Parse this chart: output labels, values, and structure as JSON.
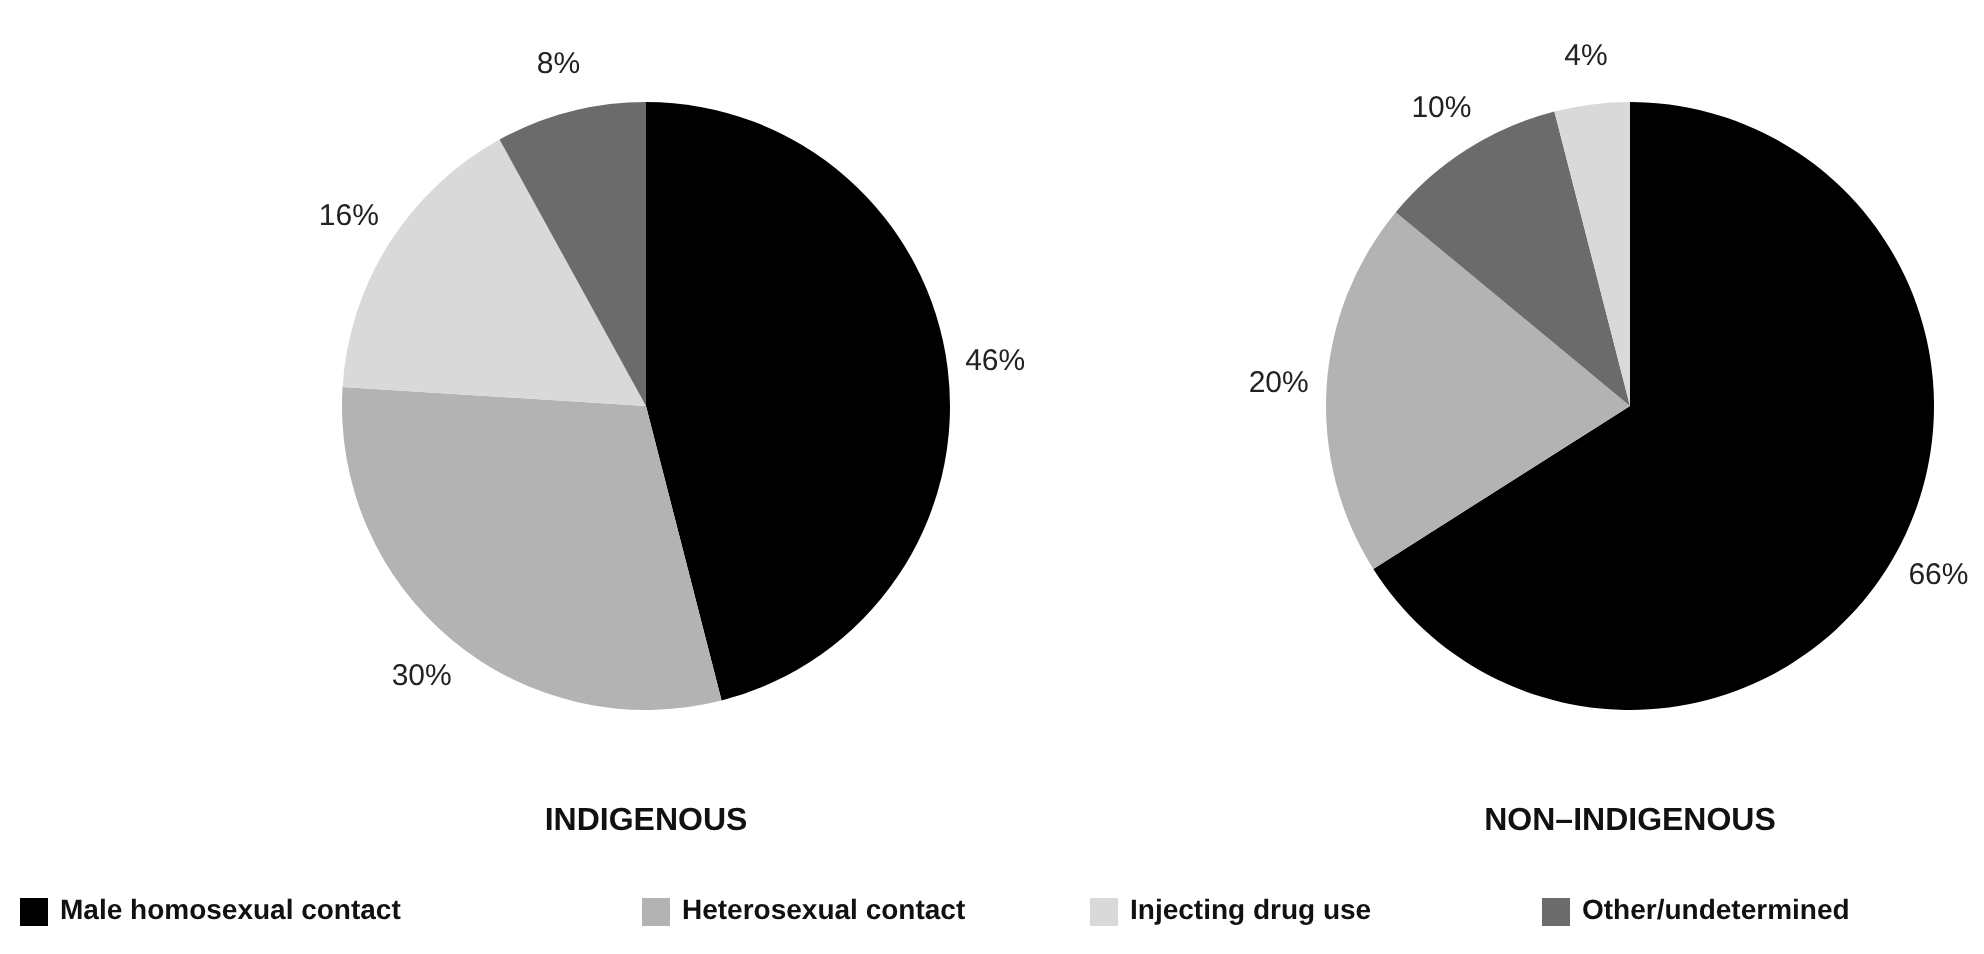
{
  "chart_data": [
    {
      "type": "pie",
      "title": "INDIGENOUS",
      "categories": [
        "Male homosexual contact",
        "Heterosexual contact",
        "Injecting drug use",
        "Other/undetermined"
      ],
      "values": [
        46,
        30,
        16,
        8
      ],
      "colors": [
        "#000000",
        "#b3b3b3",
        "#d9d9d9",
        "#6b6b6b"
      ],
      "value_labels": [
        "46%",
        "30%",
        "16%",
        "8%"
      ],
      "legend": "bottom"
    },
    {
      "type": "pie",
      "title": "NON–INDIGENOUS",
      "categories": [
        null,
        null,
        null,
        null
      ],
      "values": [
        66,
        20,
        10,
        4
      ],
      "colors": [
        "#000000",
        "#b3b3b3",
        "#6b6b6b",
        "#d9d9d9"
      ],
      "value_labels": [
        "66%",
        "20%",
        "10%",
        "4%"
      ]
    }
  ]
}
